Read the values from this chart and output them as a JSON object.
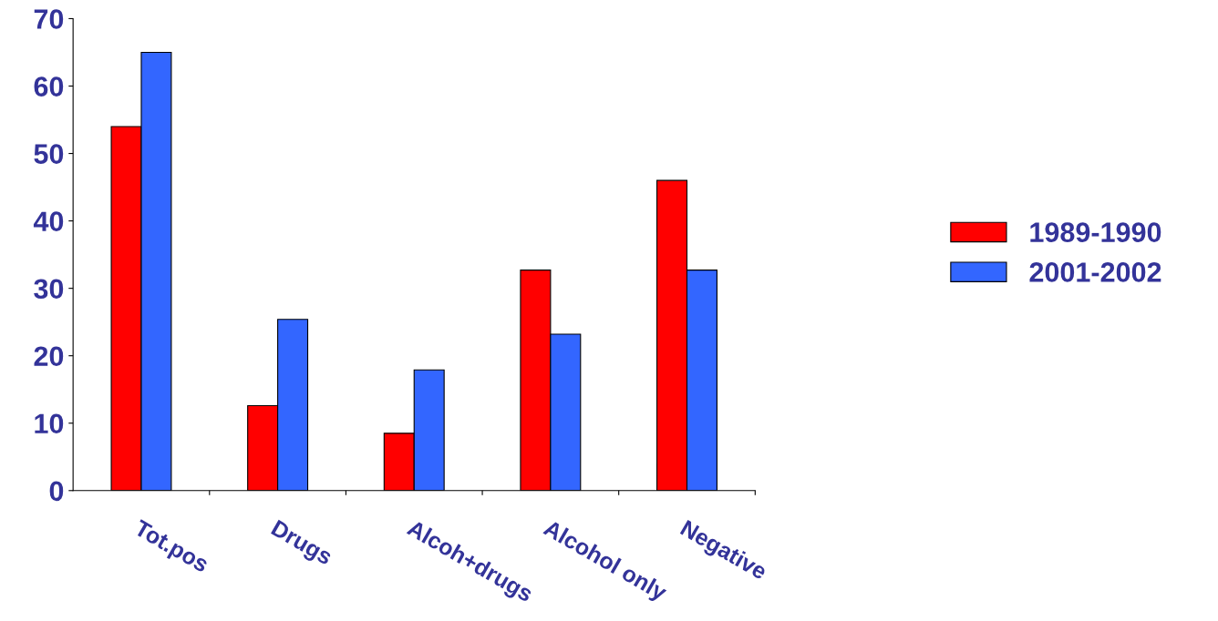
{
  "chart_data": {
    "type": "bar",
    "categories": [
      "Tot.pos",
      "Drugs",
      "Alcoh+drugs",
      "Alcohol only",
      "Negative"
    ],
    "series": [
      {
        "name": "1989-1990",
        "color": "#ff0000",
        "values": [
          54,
          12.6,
          8.5,
          32.7,
          46
        ]
      },
      {
        "name": "2001-2002",
        "color": "#3366ff",
        "values": [
          65,
          25.4,
          17.9,
          23.2,
          32.7
        ]
      }
    ],
    "ylim": [
      0,
      70
    ],
    "yticks": [
      0,
      10,
      20,
      30,
      40,
      50,
      60,
      70
    ],
    "grid": false,
    "legend": "right"
  }
}
